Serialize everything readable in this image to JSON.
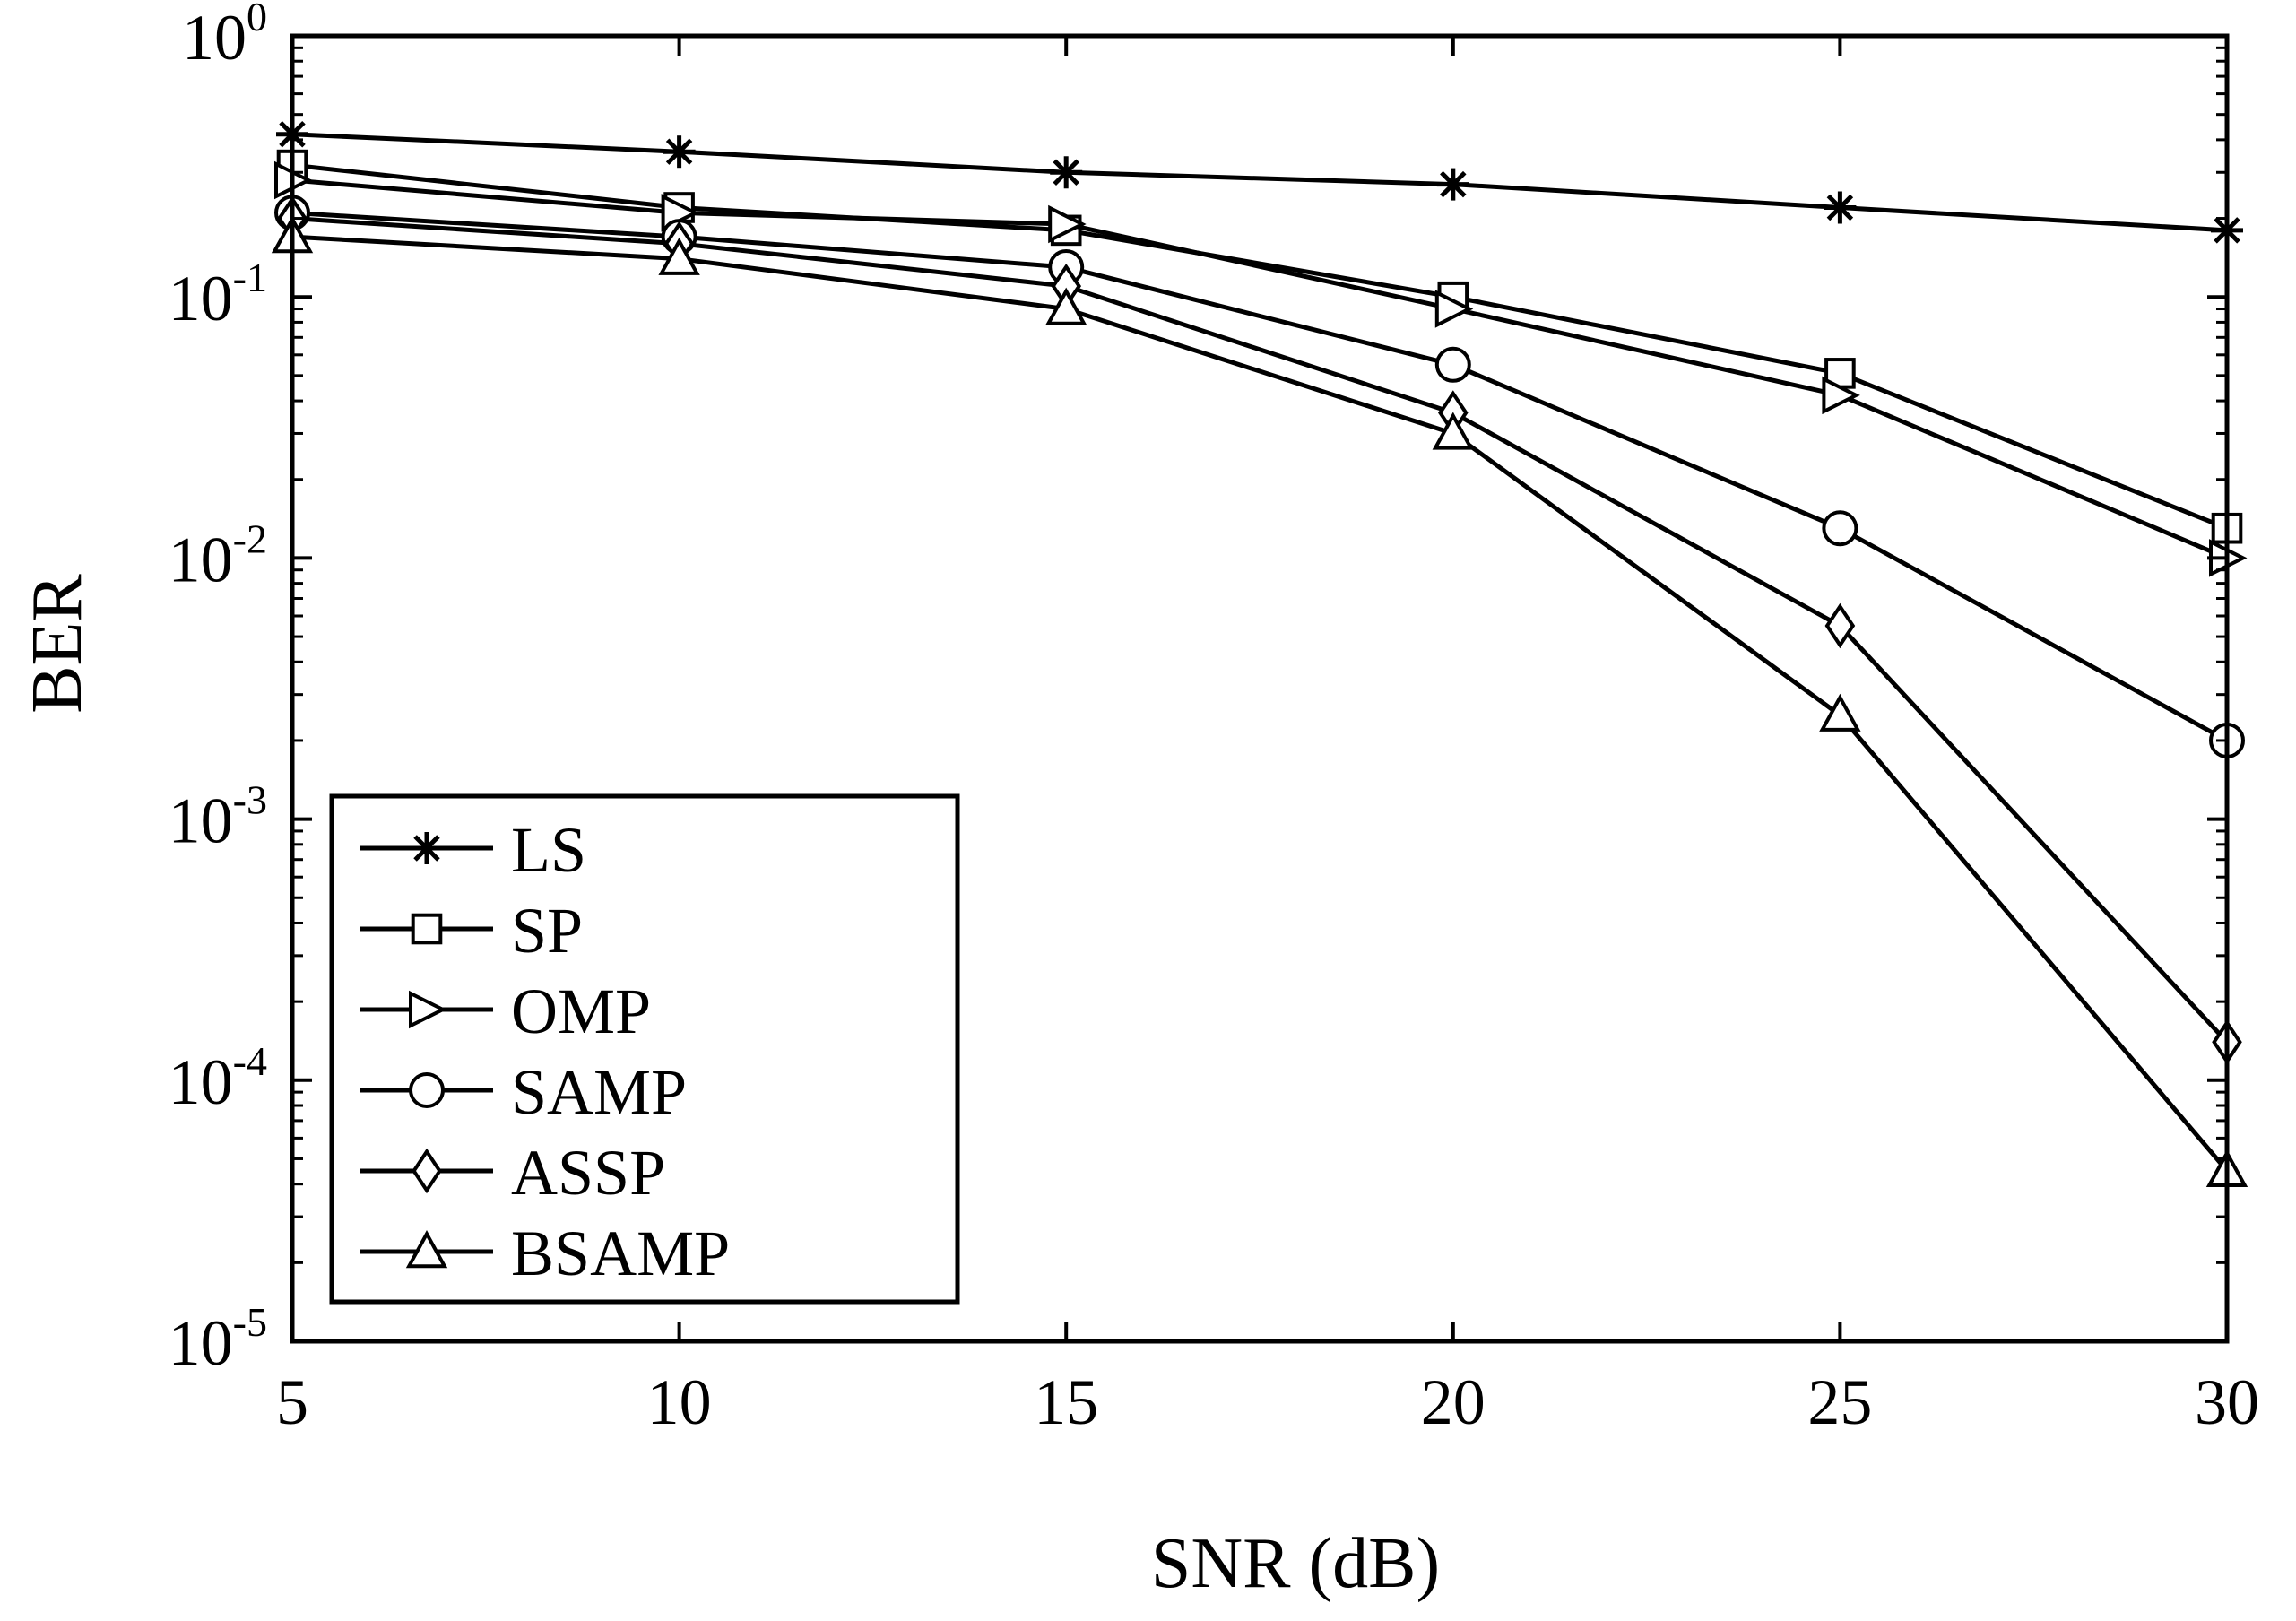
{
  "chart_data": {
    "type": "line",
    "title": "",
    "xlabel": "SNR (dB)",
    "ylabel": "BER",
    "yscale": "log",
    "xlim": [
      5,
      30
    ],
    "ylim": [
      1e-05,
      1
    ],
    "grid": false,
    "legend_position": "bottom-left",
    "x": [
      5,
      10,
      15,
      20,
      25,
      30
    ],
    "x_ticks": [
      "5",
      "10",
      "15",
      "20",
      "25",
      "30"
    ],
    "y_ticks": [
      {
        "base": "10",
        "exp": "0",
        "value": 1
      },
      {
        "base": "10",
        "exp": "-1",
        "value": 0.1
      },
      {
        "base": "10",
        "exp": "-2",
        "value": 0.01
      },
      {
        "base": "10",
        "exp": "-3",
        "value": 0.001
      },
      {
        "base": "10",
        "exp": "-4",
        "value": 0.0001
      },
      {
        "base": "10",
        "exp": "-5",
        "value": 1e-05
      }
    ],
    "series": [
      {
        "name": "LS",
        "marker": "star",
        "values": [
          0.42,
          0.36,
          0.3,
          0.27,
          0.22,
          0.18
        ]
      },
      {
        "name": "SP",
        "marker": "square",
        "values": [
          0.32,
          0.22,
          0.18,
          0.1,
          0.051,
          0.013
        ]
      },
      {
        "name": "OMP",
        "marker": "triangle-right",
        "values": [
          0.28,
          0.21,
          0.19,
          0.09,
          0.042,
          0.01
        ]
      },
      {
        "name": "SAMP",
        "marker": "circle",
        "values": [
          0.21,
          0.17,
          0.13,
          0.055,
          0.013,
          0.002
        ]
      },
      {
        "name": "ASSP",
        "marker": "diamond",
        "values": [
          0.2,
          0.16,
          0.11,
          0.036,
          0.0055,
          0.00014
        ]
      },
      {
        "name": "BSAMP",
        "marker": "triangle-up",
        "values": [
          0.17,
          0.14,
          0.09,
          0.03,
          0.0025,
          4.5e-05
        ]
      }
    ]
  }
}
